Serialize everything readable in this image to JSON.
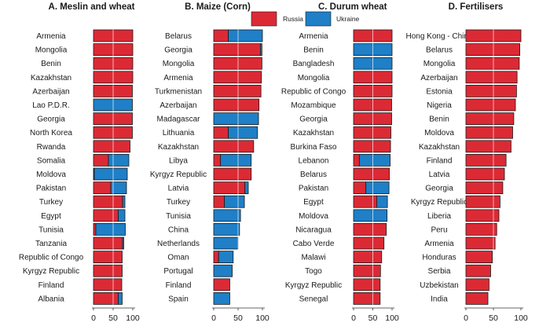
{
  "legend": {
    "items": [
      {
        "label": "Russia",
        "color": "#dc2a35"
      },
      {
        "label": "Ukraine",
        "color": "#1f7fc7"
      }
    ]
  },
  "colors": {
    "russia": "#dc2a35",
    "ukraine": "#1f7fc7",
    "bar_stroke": "#1a1a1a",
    "gridline": "#ffffff"
  },
  "chart_data": [
    {
      "type": "bar",
      "orientation": "horizontal",
      "stacked": true,
      "title": "A. Meslin and wheat",
      "xlim": [
        0,
        100
      ],
      "xticks": [
        0,
        50,
        100
      ],
      "xtick_labels": [
        "0",
        "50",
        "100"
      ],
      "grid": "vertical at 50",
      "categories": [
        "Armenia",
        "Mongolia",
        "Benin",
        "Kazakhstan",
        "Azerbaijan",
        "Lao P.D.R.",
        "Georgia",
        "North Korea",
        "Rwanda",
        "Somalia",
        "Moldova",
        "Pakistan",
        "Turkey",
        "Egypt",
        "Tunisia",
        "Tanzania",
        "Republic of Congo",
        "Kyrgyz Republic",
        "Finland",
        "Albania"
      ],
      "series": [
        {
          "name": "Russia",
          "values": [
            100,
            100,
            100,
            100,
            99,
            0,
            99,
            99,
            93,
            38,
            2,
            44,
            74,
            63,
            6,
            74,
            73,
            73,
            72,
            63
          ]
        },
        {
          "name": "Ukraine",
          "values": [
            0,
            0,
            0,
            0,
            0,
            99,
            0,
            0,
            0,
            52,
            84,
            40,
            6,
            17,
            75,
            3,
            0,
            0,
            0,
            10
          ]
        }
      ]
    },
    {
      "type": "bar",
      "orientation": "horizontal",
      "stacked": true,
      "title": "B. Maize (Corn)",
      "xlim": [
        0,
        100
      ],
      "xticks": [
        0,
        50,
        100
      ],
      "xtick_labels": [
        "0",
        "50",
        "100"
      ],
      "grid": "vertical at 50",
      "categories": [
        "Belarus",
        "Georgia",
        "Mongolia",
        "Armenia",
        "Turkmenistan",
        "Azerbaijan",
        "Madagascar",
        "Lithuania",
        "Kazakhstan",
        "Libya",
        "Kyrgyz Republic",
        "Latvia",
        "Turkey",
        "Tunisia",
        "China",
        "Netherlands",
        "Oman",
        "Portugal",
        "Finland",
        "Spain"
      ],
      "series": [
        {
          "name": "Russia",
          "values": [
            30,
            96,
            99,
            98,
            97,
            93,
            0,
            30,
            82,
            14,
            77,
            64,
            22,
            0,
            0,
            0,
            10,
            0,
            33,
            0
          ]
        },
        {
          "name": "Ukraine",
          "values": [
            70,
            3,
            0,
            0,
            0,
            0,
            92,
            60,
            0,
            63,
            0,
            7,
            41,
            55,
            53,
            50,
            30,
            38,
            0,
            33
          ]
        }
      ]
    },
    {
      "type": "bar",
      "orientation": "horizontal",
      "stacked": true,
      "title": "C. Durum wheat",
      "xlim": [
        0,
        100
      ],
      "xticks": [
        0,
        50,
        100
      ],
      "xtick_labels": [
        "0",
        "50",
        "100"
      ],
      "grid": "vertical at 50",
      "categories": [
        "Armenia",
        "Benin",
        "Bangladesh",
        "Mongolia",
        "Republic of Congo",
        "Mozambique",
        "Georgia",
        "Kazakhstan",
        "Burkina Faso",
        "Lebanon",
        "Belarus",
        "Pakistan",
        "Egypt",
        "Moldova",
        "Nicaragua",
        "Cabo Verde",
        "Malawi",
        "Togo",
        "Kyrgyz Republic",
        "Senegal"
      ],
      "series": [
        {
          "name": "Russia",
          "values": [
            100,
            0,
            0,
            100,
            100,
            99,
            99,
            97,
            96,
            15,
            93,
            32,
            60,
            0,
            85,
            79,
            73,
            70,
            69,
            69
          ]
        },
        {
          "name": "Ukraine",
          "values": [
            0,
            100,
            100,
            0,
            0,
            0,
            0,
            0,
            0,
            80,
            0,
            60,
            28,
            87,
            0,
            0,
            0,
            0,
            0,
            0
          ]
        }
      ]
    },
    {
      "type": "bar",
      "orientation": "horizontal",
      "stacked": true,
      "title": "D. Fertilisers",
      "xlim": [
        0,
        100
      ],
      "xticks": [
        0,
        50,
        100
      ],
      "xtick_labels": [
        "0",
        "50",
        "100"
      ],
      "grid": "vertical at 50",
      "categories": [
        "Hong Kong - China",
        "Belarus",
        "Mongolia",
        "Azerbaijan",
        "Estonia",
        "Nigeria",
        "Benin",
        "Moldova",
        "Kazakhstan",
        "Finland",
        "Latvia",
        "Georgia",
        "Kyrgyz Republic",
        "Liberia",
        "Peru",
        "Armenia",
        "Honduras",
        "Serbia",
        "Uzbekistan",
        "India"
      ],
      "series": [
        {
          "name": "Russia",
          "values": [
            100,
            98,
            97,
            93,
            92,
            90,
            87,
            85,
            82,
            73,
            70,
            67,
            62,
            60,
            56,
            53,
            48,
            45,
            42,
            40
          ]
        },
        {
          "name": "Ukraine",
          "values": [
            0,
            0,
            0,
            0,
            0,
            0,
            0,
            0,
            0,
            0,
            0,
            0,
            0,
            0,
            0,
            0,
            0,
            0,
            0,
            0
          ]
        }
      ]
    }
  ]
}
